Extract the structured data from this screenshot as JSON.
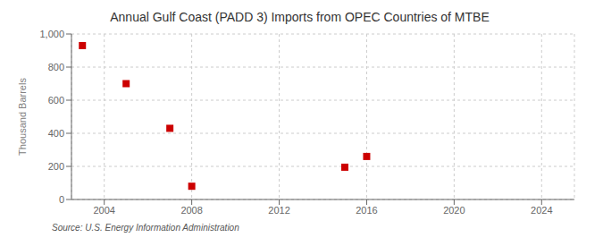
{
  "chart_data": {
    "type": "scatter",
    "title": "Annual Gulf Coast (PADD 3) Imports from OPEC Countries of MTBE",
    "ylabel": "Thousand Barrels",
    "annotation": "Source: U.S. Energy Information Administration",
    "x": [
      2003,
      2005,
      2007,
      2008,
      2015,
      2016
    ],
    "values": [
      930,
      700,
      430,
      80,
      195,
      260
    ],
    "color": "#cc0000",
    "marker": "square",
    "xlim": [
      2002.5,
      2025.5
    ],
    "ylim": [
      0,
      1000
    ],
    "xticks": [
      2004,
      2008,
      2012,
      2016,
      2020,
      2024
    ],
    "yticks": [
      0,
      200,
      400,
      600,
      800,
      {
        "value": 1000,
        "label": "1,000"
      }
    ],
    "grid": true
  }
}
